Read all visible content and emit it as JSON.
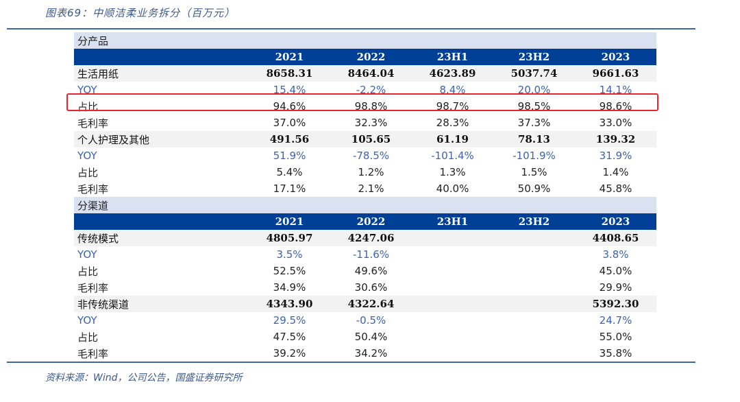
{
  "title": "图表69：中顺洁柔业务拆分（百万元）",
  "source": "资料来源：Wind，公司公告，国盛证券研究所",
  "colors": {
    "header": "#003f96",
    "section": "#dae2f2",
    "highlight": "#e8262a",
    "yoy": "#3a64b0"
  },
  "sections": [
    {
      "name": "分产品",
      "columns": [
        "2021",
        "2022",
        "23H1",
        "23H2",
        "2023"
      ],
      "rows": [
        {
          "type": "main",
          "label": "生活用纸",
          "values": [
            "8658.31",
            "8464.04",
            "4623.89",
            "5037.74",
            "9661.63"
          ]
        },
        {
          "type": "yoy",
          "label": "YOY",
          "values": [
            "15.4%",
            "-2.2%",
            "8.4%",
            "20.0%",
            "14.1%"
          ]
        },
        {
          "type": "plain",
          "label": "占比",
          "values": [
            "94.6%",
            "98.8%",
            "98.7%",
            "98.5%",
            "98.6%"
          ],
          "highlighted": true
        },
        {
          "type": "plain",
          "label": "毛利率",
          "values": [
            "37.0%",
            "32.3%",
            "28.3%",
            "37.3%",
            "33.0%"
          ]
        },
        {
          "type": "main",
          "label": "个人护理及其他",
          "values": [
            "491.56",
            "105.65",
            "61.19",
            "78.13",
            "139.32"
          ]
        },
        {
          "type": "yoy",
          "label": "YOY",
          "values": [
            "51.9%",
            "-78.5%",
            "-101.4%",
            "-101.9%",
            "31.9%"
          ]
        },
        {
          "type": "plain",
          "label": "占比",
          "values": [
            "5.4%",
            "1.2%",
            "1.3%",
            "1.5%",
            "1.4%"
          ]
        },
        {
          "type": "plain",
          "label": "毛利率",
          "values": [
            "17.1%",
            "2.1%",
            "40.0%",
            "50.9%",
            "45.8%"
          ]
        }
      ]
    },
    {
      "name": "分渠道",
      "columns": [
        "2021",
        "2022",
        "23H1",
        "23H2",
        "2023"
      ],
      "rows": [
        {
          "type": "main",
          "label": "传统模式",
          "values": [
            "4805.97",
            "4247.06",
            "",
            "",
            "4408.65"
          ]
        },
        {
          "type": "yoy",
          "label": "YOY",
          "values": [
            "3.5%",
            "-11.6%",
            "",
            "",
            "3.8%"
          ]
        },
        {
          "type": "plain",
          "label": "占比",
          "values": [
            "52.5%",
            "49.6%",
            "",
            "",
            "45.0%"
          ]
        },
        {
          "type": "plain",
          "label": "毛利率",
          "values": [
            "34.9%",
            "30.6%",
            "",
            "",
            "29.9%"
          ]
        },
        {
          "type": "main",
          "label": "非传统渠道",
          "values": [
            "4343.90",
            "4322.64",
            "",
            "",
            "5392.30"
          ]
        },
        {
          "type": "yoy",
          "label": "YOY",
          "values": [
            "29.5%",
            "-0.5%",
            "",
            "",
            "24.7%"
          ]
        },
        {
          "type": "plain",
          "label": "占比",
          "values": [
            "47.5%",
            "50.4%",
            "",
            "",
            "55.0%"
          ]
        },
        {
          "type": "plain",
          "label": "毛利率",
          "values": [
            "39.2%",
            "34.2%",
            "",
            "",
            "35.8%"
          ]
        }
      ]
    }
  ]
}
